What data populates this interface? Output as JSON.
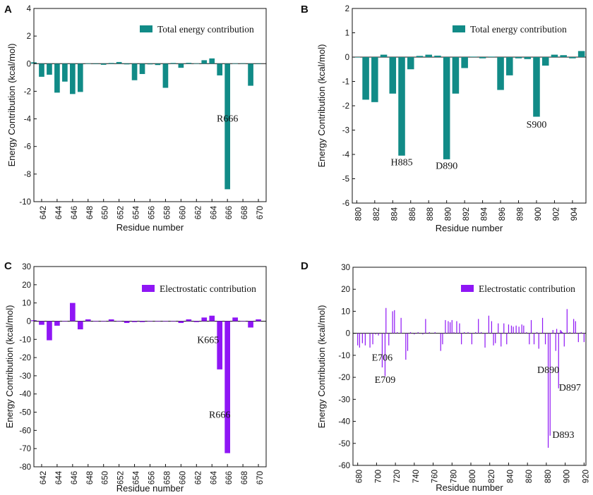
{
  "colors": {
    "teal": "#118b87",
    "purple": "#8f16f5",
    "axis": "#111111"
  },
  "chart_data": [
    {
      "panel": "A",
      "type": "bar",
      "title": "",
      "legend": "Total energy contribution",
      "legend_position": "top-right",
      "xlabel": "Residue number",
      "ylabel": "Energy Contribution (kcal/mol)",
      "xlim": [
        641,
        671
      ],
      "ylim": [
        -10,
        4
      ],
      "xticks": [
        642,
        644,
        646,
        648,
        650,
        652,
        654,
        656,
        658,
        660,
        662,
        664,
        666,
        668,
        670
      ],
      "yticks": [
        -10,
        -8,
        -6,
        -4,
        -2,
        0,
        2,
        4
      ],
      "bar_width": 0.7,
      "x": [
        641,
        642,
        643,
        644,
        645,
        646,
        647,
        648,
        649,
        650,
        651,
        652,
        653,
        654,
        655,
        656,
        657,
        658,
        659,
        660,
        661,
        662,
        663,
        664,
        665,
        666,
        667,
        668,
        669,
        670
      ],
      "values": [
        0.1,
        -0.95,
        -0.8,
        -2.1,
        -1.3,
        -2.2,
        -2.05,
        0.02,
        0.0,
        -0.08,
        0.05,
        0.12,
        -0.05,
        -1.2,
        -0.75,
        -0.05,
        -0.1,
        -1.75,
        0.05,
        -0.3,
        0.06,
        0.02,
        0.25,
        0.38,
        -0.85,
        -9.1,
        0.02,
        0.03,
        -1.6,
        0.0
      ],
      "annotations": [
        {
          "text": "R666",
          "x": 666,
          "y": -4.2
        }
      ]
    },
    {
      "panel": "B",
      "type": "bar",
      "title": "",
      "legend": "Total energy contribution",
      "legend_position": "top-right",
      "xlabel": "Residue number",
      "ylabel": "Energy Contribution (kcal/mol)",
      "xlim": [
        879.5,
        905.5
      ],
      "ylim": [
        -6,
        2
      ],
      "xticks": [
        880,
        882,
        884,
        886,
        888,
        890,
        892,
        894,
        896,
        898,
        900,
        902,
        904
      ],
      "yticks": [
        -6,
        -5,
        -4,
        -3,
        -2,
        -1,
        0,
        1,
        2
      ],
      "bar_width": 0.75,
      "x": [
        880,
        881,
        882,
        883,
        884,
        885,
        886,
        887,
        888,
        889,
        890,
        891,
        892,
        893,
        894,
        895,
        896,
        897,
        898,
        899,
        900,
        901,
        902,
        903,
        904,
        905
      ],
      "values": [
        0.0,
        -1.75,
        -1.85,
        0.1,
        -1.5,
        -4.05,
        -0.5,
        0.05,
        0.1,
        0.06,
        -4.2,
        -1.5,
        -0.45,
        0.02,
        -0.05,
        0.02,
        -1.35,
        -0.75,
        -0.05,
        -0.08,
        -2.45,
        -0.35,
        0.1,
        0.08,
        -0.05,
        0.25
      ],
      "annotations": [
        {
          "text": "H885",
          "x": 885,
          "y": -4.45
        },
        {
          "text": "D890",
          "x": 890,
          "y": -4.6
        },
        {
          "text": "S900",
          "x": 900,
          "y": -2.9
        }
      ]
    },
    {
      "panel": "C",
      "type": "bar",
      "title": "",
      "legend": "Electrostatic contribution",
      "legend_position": "top-right",
      "xlabel": "Residue number",
      "ylabel": "Energy Contribution (kcal/mol)",
      "xlim": [
        641,
        671
      ],
      "ylim": [
        -80,
        30
      ],
      "xticks": [
        642,
        644,
        646,
        648,
        650,
        652,
        654,
        656,
        658,
        660,
        662,
        664,
        666,
        668,
        670
      ],
      "yticks": [
        -80,
        -70,
        -60,
        -50,
        -40,
        -30,
        -20,
        -10,
        0,
        10,
        20,
        30
      ],
      "bar_width": 0.7,
      "x": [
        641,
        642,
        643,
        644,
        645,
        646,
        647,
        648,
        649,
        650,
        651,
        652,
        653,
        654,
        655,
        656,
        657,
        658,
        659,
        660,
        661,
        662,
        663,
        664,
        665,
        666,
        667,
        668,
        669,
        670
      ],
      "values": [
        0.5,
        -2.0,
        -10.5,
        -2.5,
        0.0,
        10.0,
        -4.5,
        1.0,
        0.0,
        0.0,
        1.0,
        0.0,
        -1.0,
        -0.5,
        -0.5,
        0.0,
        0.0,
        0.0,
        0.0,
        -1.0,
        1.0,
        -0.5,
        2.0,
        3.0,
        -26.5,
        -72.5,
        2.0,
        0.0,
        -3.5,
        1.0
      ],
      "annotations": [
        {
          "text": "K665",
          "x": 663.5,
          "y": -12
        },
        {
          "text": "R666",
          "x": 665,
          "y": -53
        }
      ]
    },
    {
      "panel": "D",
      "type": "bar",
      "title": "",
      "legend": "Electrostatic contribution",
      "legend_position": "top-right",
      "xlabel": "Residue number",
      "ylabel": "Energy Contribution (kcal/mol)",
      "xlim": [
        675,
        922
      ],
      "ylim": [
        -60,
        30
      ],
      "xticks": [
        680,
        700,
        720,
        740,
        760,
        780,
        800,
        820,
        840,
        860,
        880,
        900,
        920
      ],
      "yticks": [
        -60,
        -50,
        -40,
        -30,
        -20,
        -10,
        0,
        10,
        20,
        30
      ],
      "bar_width": 0.9,
      "x": [
        680,
        682,
        685,
        688,
        693,
        696,
        699,
        702,
        706,
        709,
        710,
        713,
        717,
        719,
        722,
        726,
        731,
        733,
        736,
        740,
        744,
        749,
        752,
        756,
        762,
        768,
        770,
        773,
        776,
        778,
        780,
        782,
        785,
        788,
        790,
        793,
        797,
        801,
        805,
        808,
        811,
        815,
        819,
        822,
        824,
        826,
        829,
        832,
        835,
        838,
        840,
        843,
        845,
        848,
        851,
        854,
        856,
        859,
        862,
        864,
        867,
        870,
        872,
        876,
        879,
        882,
        884,
        887,
        890,
        891,
        893,
        895,
        896,
        897,
        899,
        902,
        905,
        909,
        911,
        914,
        917,
        920
      ],
      "values": [
        -5.5,
        -6.5,
        -4.5,
        -5.5,
        -6.5,
        -5.0,
        -0.5,
        -1.0,
        -15.5,
        -19.5,
        11.5,
        -5.5,
        10.0,
        10.5,
        0.5,
        7.0,
        -12.0,
        -8.0,
        0.5,
        -0.5,
        0.5,
        -0.5,
        6.5,
        0.5,
        0.5,
        -8.0,
        -5.0,
        6.0,
        5.5,
        5.0,
        6.0,
        0.5,
        5.5,
        4.5,
        -5.0,
        0.5,
        0.5,
        -5.0,
        0.5,
        6.5,
        0.5,
        -6.5,
        8.0,
        5.5,
        -5.5,
        -4.5,
        4.5,
        -6.0,
        4.5,
        -5.0,
        4.0,
        3.5,
        3.0,
        3.5,
        3.0,
        4.0,
        3.5,
        0.5,
        -5.0,
        6.0,
        -5.0,
        0.5,
        -7.0,
        7.0,
        -5.0,
        -52.0,
        -46.5,
        1.5,
        -8.0,
        2.0,
        -25.0,
        1.5,
        1.0,
        0.5,
        -6.0,
        11.0,
        0.5,
        6.5,
        5.5,
        -4.0,
        0.5,
        -4.0
      ],
      "annotations": [
        {
          "text": "E706",
          "x": 706,
          "y": -12.5
        },
        {
          "text": "E709",
          "x": 709,
          "y": -22.5
        },
        {
          "text": "D890",
          "x": 882,
          "y": -18
        },
        {
          "text": "D897",
          "x": 905,
          "y": -26
        },
        {
          "text": "D893",
          "x": 898,
          "y": -47.5
        }
      ]
    }
  ]
}
